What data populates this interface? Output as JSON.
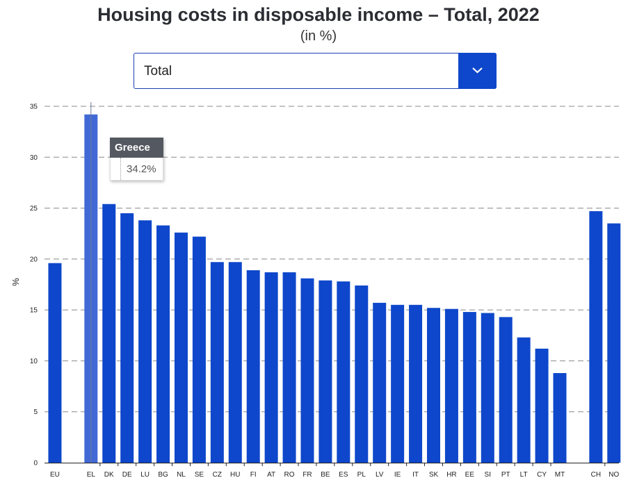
{
  "chart_data": {
    "type": "bar",
    "title": "Housing costs in disposable income – Total, 2022",
    "subtitle": "(in %)",
    "xlabel": "",
    "ylabel": "%",
    "ylim": [
      0,
      35
    ],
    "yticks": [
      0,
      5,
      10,
      15,
      20,
      25,
      30,
      35
    ],
    "grid": true,
    "groups": [
      [
        "EU"
      ],
      [
        "EL",
        "DK",
        "DE",
        "LU",
        "BG",
        "NL",
        "SE",
        "CZ",
        "HU",
        "FI",
        "AT",
        "RO",
        "FR",
        "BE",
        "ES",
        "PL",
        "LV",
        "IE",
        "IT",
        "SK",
        "HR",
        "EE",
        "SI",
        "PT",
        "LT",
        "CY",
        "MT"
      ],
      [
        "CH",
        "NO"
      ]
    ],
    "categories": [
      "EU",
      "EL",
      "DK",
      "DE",
      "LU",
      "BG",
      "NL",
      "SE",
      "CZ",
      "HU",
      "FI",
      "AT",
      "RO",
      "FR",
      "BE",
      "ES",
      "PL",
      "LV",
      "IE",
      "IT",
      "SK",
      "HR",
      "EE",
      "SI",
      "PT",
      "LT",
      "CY",
      "MT",
      "CH",
      "NO"
    ],
    "values": [
      19.6,
      34.2,
      25.4,
      24.5,
      23.8,
      23.3,
      22.6,
      22.2,
      19.7,
      19.7,
      18.9,
      18.7,
      18.7,
      18.1,
      17.9,
      17.8,
      17.4,
      15.7,
      15.5,
      15.5,
      15.2,
      15.1,
      14.8,
      14.7,
      14.3,
      12.3,
      11.2,
      8.8,
      24.7,
      23.5
    ],
    "highlighted": "EL"
  },
  "dropdown": {
    "value": "Total"
  },
  "tooltip": {
    "title": "Greece",
    "value": "34.2%"
  },
  "colors": {
    "bar": "#0e47cb",
    "bar_highlight": "#4169d5",
    "grid": "#888888"
  }
}
